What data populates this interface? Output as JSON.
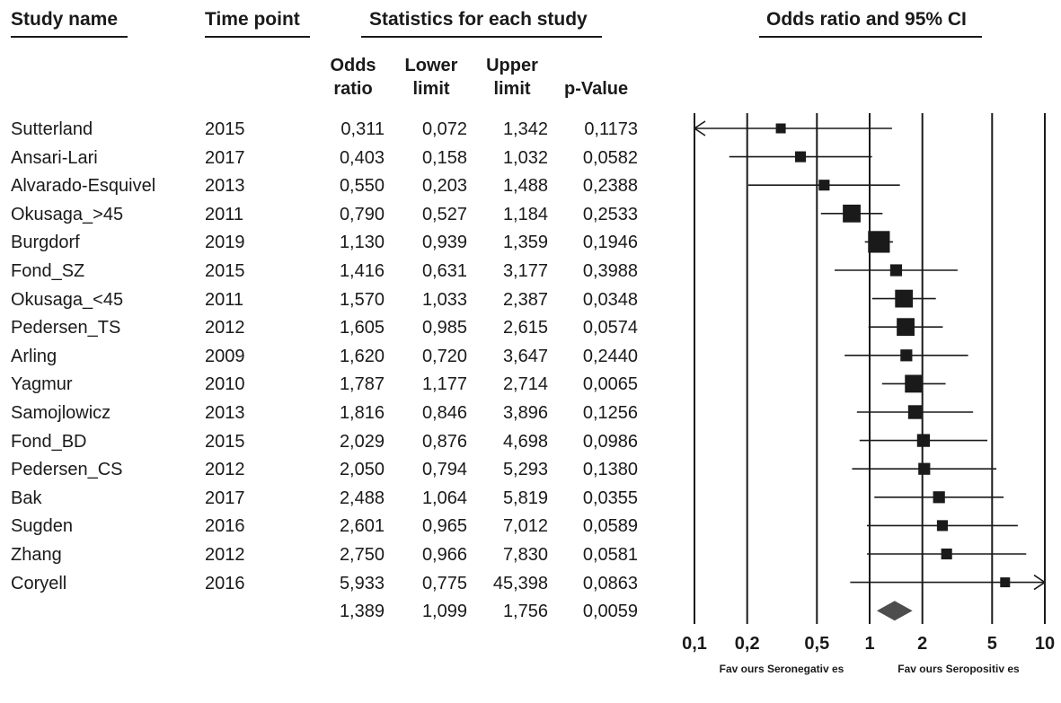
{
  "headers": {
    "study_name": "Study name",
    "time_point": "Time point",
    "statistics": "Statistics for each study",
    "odds_ci": "Odds ratio and 95% CI"
  },
  "subheaders": {
    "odds_ratio": "Odds\nratio",
    "lower_limit": "Lower\nlimit",
    "upper_limit": "Upper\nlimit",
    "p_value": "p-Value"
  },
  "studies": [
    {
      "name": "Sutterland",
      "year": "2015",
      "or": "0,311",
      "lower": "0,072",
      "upper": "1,342",
      "p": "0,1173"
    },
    {
      "name": "Ansari-Lari",
      "year": "2017",
      "or": "0,403",
      "lower": "0,158",
      "upper": "1,032",
      "p": "0,0582"
    },
    {
      "name": "Alvarado-Esquivel",
      "year": "2013",
      "or": "0,550",
      "lower": "0,203",
      "upper": "1,488",
      "p": "0,2388"
    },
    {
      "name": "Okusaga_>45",
      "year": "2011",
      "or": "0,790",
      "lower": "0,527",
      "upper": "1,184",
      "p": "0,2533"
    },
    {
      "name": "Burgdorf",
      "year": "2019",
      "or": "1,130",
      "lower": "0,939",
      "upper": "1,359",
      "p": "0,1946"
    },
    {
      "name": "Fond_SZ",
      "year": "2015",
      "or": "1,416",
      "lower": "0,631",
      "upper": "3,177",
      "p": "0,3988"
    },
    {
      "name": "Okusaga_<45",
      "year": "2011",
      "or": "1,570",
      "lower": "1,033",
      "upper": "2,387",
      "p": "0,0348"
    },
    {
      "name": "Pedersen_TS",
      "year": "2012",
      "or": "1,605",
      "lower": "0,985",
      "upper": "2,615",
      "p": "0,0574"
    },
    {
      "name": "Arling",
      "year": "2009",
      "or": "1,620",
      "lower": "0,720",
      "upper": "3,647",
      "p": "0,2440"
    },
    {
      "name": "Yagmur",
      "year": "2010",
      "or": "1,787",
      "lower": "1,177",
      "upper": "2,714",
      "p": "0,0065"
    },
    {
      "name": "Samojlowicz",
      "year": "2013",
      "or": "1,816",
      "lower": "0,846",
      "upper": "3,896",
      "p": "0,1256"
    },
    {
      "name": "Fond_BD",
      "year": "2015",
      "or": "2,029",
      "lower": "0,876",
      "upper": "4,698",
      "p": "0,0986"
    },
    {
      "name": "Pedersen_CS",
      "year": "2012",
      "or": "2,050",
      "lower": "0,794",
      "upper": "5,293",
      "p": "0,1380"
    },
    {
      "name": "Bak",
      "year": "2017",
      "or": "2,488",
      "lower": "1,064",
      "upper": "5,819",
      "p": "0,0355"
    },
    {
      "name": "Sugden",
      "year": "2016",
      "or": "2,601",
      "lower": "0,965",
      "upper": "7,012",
      "p": "0,0589"
    },
    {
      "name": "Zhang",
      "year": "2012",
      "or": "2,750",
      "lower": "0,966",
      "upper": "7,830",
      "p": "0,0581"
    },
    {
      "name": "Coryell",
      "year": "2016",
      "or": "5,933",
      "lower": "0,775",
      "upper": "45,398",
      "p": "0,0863"
    }
  ],
  "summary": {
    "or": "1,389",
    "lower": "1,099",
    "upper": "1,756",
    "p": "0,0059"
  },
  "chart_data": {
    "type": "forest",
    "title": "Odds ratio and 95% CI",
    "x_scale": "log",
    "xlim": [
      0.1,
      10
    ],
    "x_ticks": [
      "0,1",
      "0,2",
      "0,5",
      "1",
      "2",
      "5",
      "10"
    ],
    "x_tick_values": [
      0.1,
      0.2,
      0.5,
      1,
      2,
      5,
      10
    ],
    "favours_left": "Fav ours Seronegativ es",
    "favours_right": "Fav ours Seropositiv es",
    "points": [
      {
        "label": "Sutterland",
        "or": 0.311,
        "lower": 0.072,
        "upper": 1.342,
        "weight": 1
      },
      {
        "label": "Ansari-Lari",
        "or": 0.403,
        "lower": 0.158,
        "upper": 1.032,
        "weight": 1.1
      },
      {
        "label": "Alvarado-Esquivel",
        "or": 0.55,
        "lower": 0.203,
        "upper": 1.488,
        "weight": 1.1
      },
      {
        "label": "Okusaga_>45",
        "or": 0.79,
        "lower": 0.527,
        "upper": 1.184,
        "weight": 1.8
      },
      {
        "label": "Burgdorf",
        "or": 1.13,
        "lower": 0.939,
        "upper": 1.359,
        "weight": 2.2
      },
      {
        "label": "Fond_SZ",
        "or": 1.416,
        "lower": 0.631,
        "upper": 3.177,
        "weight": 1.2
      },
      {
        "label": "Okusaga_<45",
        "or": 1.57,
        "lower": 1.033,
        "upper": 2.387,
        "weight": 1.8
      },
      {
        "label": "Pedersen_TS",
        "or": 1.605,
        "lower": 0.985,
        "upper": 2.615,
        "weight": 1.8
      },
      {
        "label": "Arling",
        "or": 1.62,
        "lower": 0.72,
        "upper": 3.647,
        "weight": 1.2
      },
      {
        "label": "Yagmur",
        "or": 1.787,
        "lower": 1.177,
        "upper": 2.714,
        "weight": 1.8
      },
      {
        "label": "Samojlowicz",
        "or": 1.816,
        "lower": 0.846,
        "upper": 3.896,
        "weight": 1.4
      },
      {
        "label": "Fond_BD",
        "or": 2.029,
        "lower": 0.876,
        "upper": 4.698,
        "weight": 1.3
      },
      {
        "label": "Pedersen_CS",
        "or": 2.05,
        "lower": 0.794,
        "upper": 5.293,
        "weight": 1.2
      },
      {
        "label": "Bak",
        "or": 2.488,
        "lower": 1.064,
        "upper": 5.819,
        "weight": 1.2
      },
      {
        "label": "Sugden",
        "or": 2.601,
        "lower": 0.965,
        "upper": 7.012,
        "weight": 1.1
      },
      {
        "label": "Zhang",
        "or": 2.75,
        "lower": 0.966,
        "upper": 7.83,
        "weight": 1.1
      },
      {
        "label": "Coryell",
        "or": 5.933,
        "lower": 0.775,
        "upper": 45.398,
        "weight": 1
      }
    ],
    "summary": {
      "or": 1.389,
      "lower": 1.099,
      "upper": 1.756
    },
    "colors": {
      "marker": "#1a1a1a",
      "diamond": "#4d4d4d",
      "lines": "#1a1a1a"
    }
  }
}
